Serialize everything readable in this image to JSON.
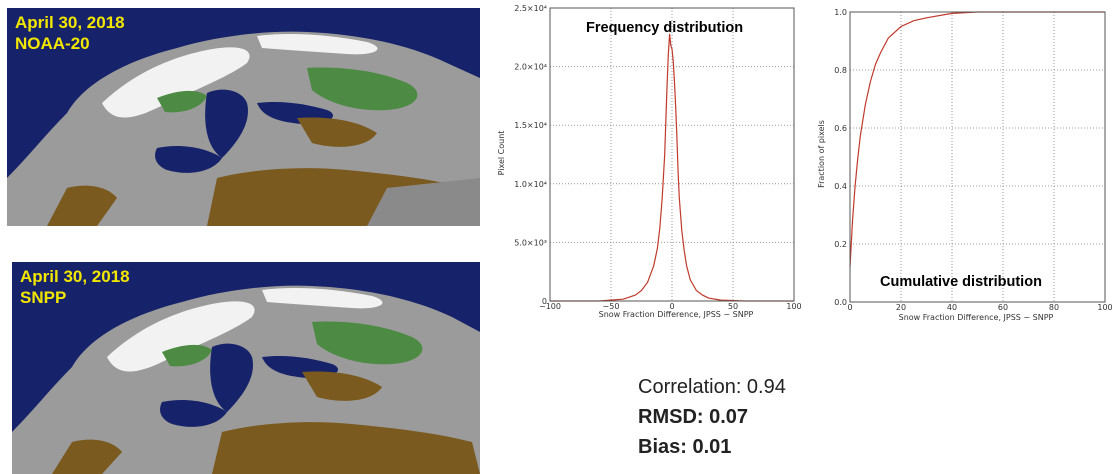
{
  "maps": [
    {
      "date": "April 30, 2018",
      "satellite": "NOAA-20"
    },
    {
      "date": "April 30, 2018",
      "satellite": "SNPP"
    }
  ],
  "colors": {
    "water": "#16236a",
    "land_gray": "#9b9b9b",
    "snow_white": "#f2f2f2",
    "vegetation_green": "#4d8a44",
    "brown_land": "#7a5a1f",
    "curve_red": "#c0392b",
    "label_yellow": "#f2e600"
  },
  "chart_data": [
    {
      "type": "line",
      "title": "Frequency distribution",
      "xlabel": "Snow Fraction Difference, JPSS − SNPP",
      "ylabel": "Pixel Count",
      "xlim": [
        -100,
        100
      ],
      "ylim": [
        0,
        25000
      ],
      "x_ticks": [
        "−100",
        "−50",
        "0",
        "50",
        "100"
      ],
      "y_ticks": [
        "0",
        "5.0×10³",
        "1.0×10⁴",
        "1.5×10⁴",
        "2.0×10⁴",
        "2.5×10⁴"
      ],
      "grid": true,
      "series": [
        {
          "x": [
            -100,
            -60,
            -40,
            -30,
            -25,
            -20,
            -15,
            -12,
            -10,
            -8,
            -6,
            -5,
            -4,
            -3,
            -2,
            -1,
            0,
            1,
            2,
            3,
            4,
            5,
            6,
            8,
            10,
            12,
            15,
            20,
            25,
            30,
            40,
            60,
            100
          ],
          "y": [
            0,
            0,
            150,
            500,
            900,
            1600,
            3000,
            4500,
            6200,
            8800,
            12500,
            15500,
            18500,
            21000,
            22800,
            21800,
            21500,
            20500,
            18800,
            16500,
            14000,
            11000,
            8800,
            6000,
            4300,
            3000,
            1800,
            900,
            500,
            250,
            80,
            0,
            0
          ]
        }
      ]
    },
    {
      "type": "line",
      "title": "Cumulative distribution",
      "xlabel": "Snow Fraction Difference, JPSS − SNPP",
      "ylabel": "Fraction of pixels",
      "xlim": [
        0,
        100
      ],
      "ylim": [
        0,
        1.0
      ],
      "x_ticks": [
        "0",
        "20",
        "40",
        "60",
        "80",
        "100"
      ],
      "y_ticks": [
        "0.0",
        "0.2",
        "0.4",
        "0.6",
        "0.8",
        "1.0"
      ],
      "grid": true,
      "series": [
        {
          "x": [
            0,
            1,
            2,
            3,
            4,
            6,
            8,
            10,
            12,
            15,
            20,
            25,
            30,
            40,
            50,
            60,
            80,
            100
          ],
          "y": [
            0.12,
            0.28,
            0.4,
            0.49,
            0.57,
            0.68,
            0.76,
            0.82,
            0.86,
            0.91,
            0.95,
            0.97,
            0.98,
            0.995,
            1.0,
            1.0,
            1.0,
            1.0
          ]
        }
      ]
    }
  ],
  "stats": {
    "correlation": "Correlation: 0.94",
    "rmsd": "RMSD: 0.07",
    "bias": "Bias: 0.01"
  }
}
